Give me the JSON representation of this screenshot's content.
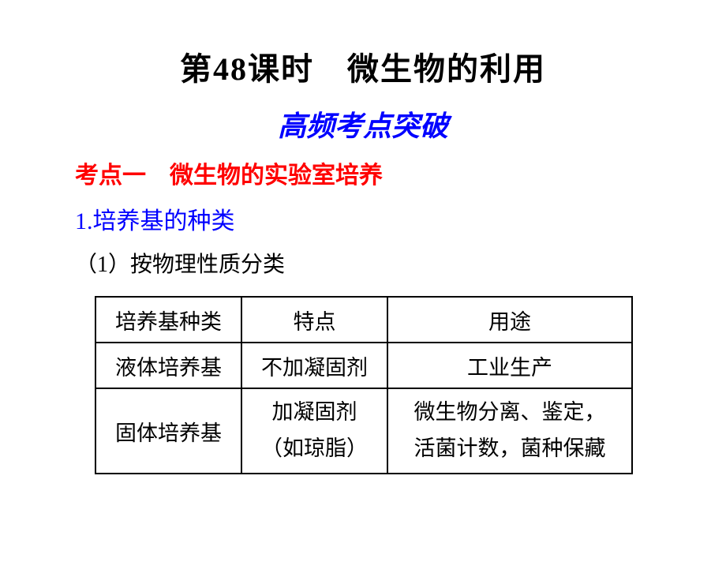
{
  "title": "第48课时　微生物的利用",
  "subtitle": "高频考点突破",
  "section_a": "考点一　微生物的实验室培养",
  "section_b": "1.培养基的种类",
  "section_c": "（1）按物理性质分类",
  "table": {
    "rows": [
      [
        "培养基种类",
        "特点",
        "用途"
      ],
      [
        "液体培养基",
        "不加凝固剂",
        "工业生产"
      ],
      [
        "固体培养基",
        "加凝固剂\n（如琼脂）",
        "微生物分离、鉴定，\n活菌计数，菌种保藏"
      ]
    ]
  },
  "colors": {
    "title": "#000000",
    "subtitle": "#0000ff",
    "section_a": "#ff0000",
    "section_b": "#0000ff",
    "body": "#000000",
    "background": "#ffffff",
    "border": "#000000"
  },
  "fonts": {
    "title_size": 40,
    "subtitle_size": 36,
    "section_size": 30,
    "body_size": 28,
    "table_size": 27
  }
}
